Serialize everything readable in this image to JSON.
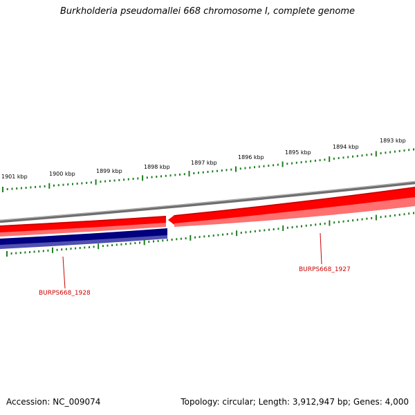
{
  "title": "Burkholderia pseudomallei 668 chromosome I, complete genome",
  "accession_text": "Accession: NC_009074",
  "summary_text": "Topology: circular; Length: 3,912,947 bp; Genes: 4,000",
  "scale_labels": [
    "1893 kbp",
    "1894 kbp",
    "1895 kbp",
    "1896 kbp",
    "1897 kbp",
    "1898 kbp",
    "1899 kbp",
    "1900 kbp",
    "1901 kbp"
  ],
  "genes": [
    {
      "label": "BURPS668_1927",
      "strand": "reverse",
      "color": "#ff0000"
    },
    {
      "label": "BURPS668_1928",
      "strand": "forward",
      "color": "#000080"
    }
  ],
  "colors": {
    "backbone": "#808080",
    "reverse_gene": "#ff0000",
    "forward_gene": "#000080",
    "ticks": "#1e7d1e",
    "gene_label": "#cc0000"
  }
}
